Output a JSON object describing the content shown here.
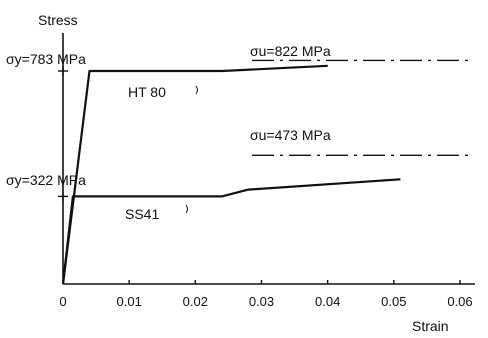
{
  "chart_data": {
    "type": "line",
    "ylabel": "Stress",
    "xlabel": "Strain",
    "xlim": [
      0,
      0.063
    ],
    "ylim": [
      0,
      1000
    ],
    "x_ticks": [
      "0",
      "0.01",
      "0.02",
      "0.03",
      "0.04",
      "0.05",
      "0.06"
    ],
    "x_tick_values": [
      0,
      0.01,
      0.02,
      0.03,
      0.04,
      0.05,
      0.06
    ],
    "series": [
      {
        "name": "HT80",
        "label": "HT 80",
        "points": [
          [
            0,
            0
          ],
          [
            0.004,
            783
          ],
          [
            0.024,
            783
          ],
          [
            0.04,
            802
          ]
        ],
        "yield_text": "σy=783 MPa",
        "yield_value": 783,
        "ultimate_text": "σu=822 MPa",
        "ultimate_value": 822
      },
      {
        "name": "SS41",
        "label": "SS41",
        "points": [
          [
            0,
            0
          ],
          [
            0.0015,
            322
          ],
          [
            0.024,
            322
          ],
          [
            0.028,
            347
          ],
          [
            0.051,
            385
          ]
        ],
        "yield_text": "σy=322 MPa",
        "yield_value": 322,
        "ultimate_text": "σu=473 MPa",
        "ultimate_value": 473
      }
    ],
    "annotations": [
      "σy=783 MPa",
      "σu=822 MPa",
      "σy=322 MPa",
      "σu=473 MPa"
    ]
  }
}
